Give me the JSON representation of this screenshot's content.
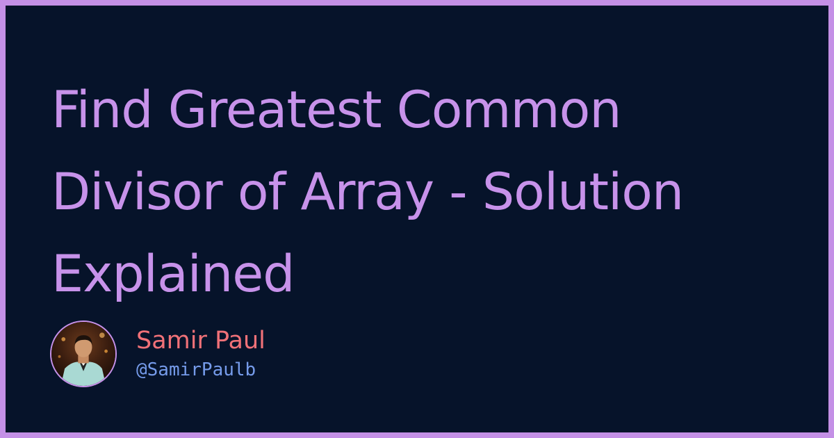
{
  "title": {
    "line1": "Find Greatest Common",
    "line2": "Divisor of Array - Solution",
    "line3": "Explained"
  },
  "author": {
    "name": "Samir Paul",
    "handle": "@SamirPaulb"
  },
  "colors": {
    "frame": "#c490e6",
    "background": "#06132a",
    "title": "#c792ea",
    "author_name": "#f07178",
    "author_handle": "#82aaff"
  }
}
